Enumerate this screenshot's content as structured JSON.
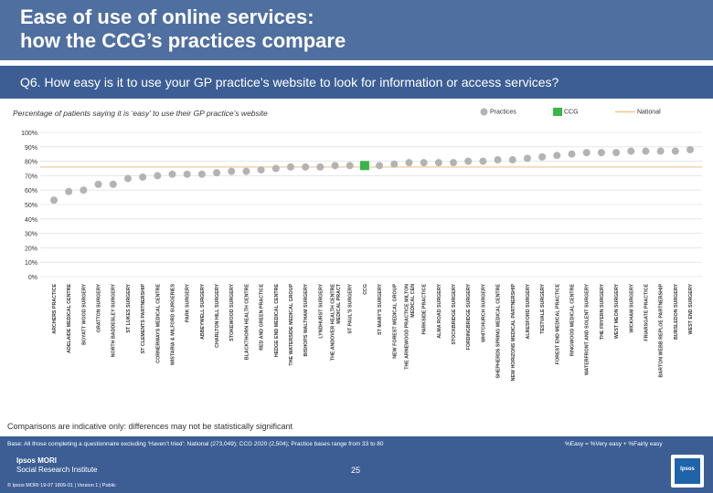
{
  "header": {
    "title": "Ease of use of online services:\nhow the CCG’s practices compare"
  },
  "question": "Q6. How easy is it to use your GP practice’s website to look for information or access services?",
  "footer": {
    "comparison_note": "Comparisons are indicative only: differences may not be statistically significant",
    "base_note": "Base: All those completing a questionnaire excluding ‘Haven’t tried’: National (273,049); CCG 2020 (2,504); Practice bases range from 33 to 80",
    "key_note": "%Easy = %Very easy + %Fairly easy",
    "logo_line1": "Ipsos MORI",
    "logo_line2": "Social Research Institute",
    "copyright": "© Ipsos MORI     19-07 1809-01 | Version 1 | Public",
    "page_number": "25",
    "badge": "Ipsos"
  },
  "chart_data": {
    "type": "scatter",
    "subtitle": "Percentage of patients saying it is ‘easy’ to use their GP practice’s website",
    "legend": [
      {
        "label": "Practices",
        "marker": "circle"
      },
      {
        "label": "CCG",
        "marker": "square"
      },
      {
        "label": "National",
        "marker": "line"
      }
    ],
    "legend_placement": "top-right",
    "y_ticks": [
      "0%",
      "10%",
      "20%",
      "30%",
      "40%",
      "50%",
      "60%",
      "70%",
      "80%",
      "90%",
      "100%"
    ],
    "ylim": [
      0,
      100
    ],
    "national": 76,
    "categories": [
      "ARCHERS PRACTICE",
      "ADELAIDE MEDICAL CENTRE",
      "BOYATT WOOD SURGERY",
      "GRATTON SURGERY",
      "NORTH BADDESLEY SURGERY",
      "ST LUKES SURGERY",
      "ST CLEMENTS PARTNERSHIP",
      "CORNERWAYS MEDICAL CENTRE",
      "WISTARIA & MILFORD SURGERIES",
      "PARK SURGERY",
      "ABBEYWELL SURGERY",
      "CHARLTON HILL SURGERY",
      "STOKEWOOD SURGERY",
      "BLACKTHORN HEALTH CENTRE",
      "RED AND GREEN PRACTICE",
      "HEDGE END MEDICAL CENTRE",
      "THE WATERSIDE MEDICAL GROUP",
      "BISHOPS WALTHAM SURGERY",
      "LYNDHURST SURGERY",
      "THE ANDOVER HEALTH CENTRE MEDICAL PRACT",
      "ST PAUL'S SURGERY",
      "CCG",
      "ST MARY'S SURGERY",
      "NEW FOREST MEDICAL GROUP",
      "THE ARNEWOOD PRACTICE MILTON MEDICAL CEN",
      "PARKSIDE PRACTICE",
      "ALMA ROAD SURGERY",
      "STOCKBRIDGE SURGERY",
      "FORDINGBRIDGE SURGERY",
      "WHITCHURCH SURGERY",
      "SHEPHERDS SPRING MEDICAL CENTRE",
      "NEW HORIZONS MEDICAL PARTNERSHIP",
      "ALRESFORD SURGERY",
      "TESTVALE SURGERY",
      "FOREST END MEDICAL PRACTICE",
      "RINGWOOD MEDICAL CENTRE",
      "WATERFRONT AND SOLENT SURGERY",
      "THE FRYERN SURGERY",
      "WEST MEON SURGERY",
      "WICKHAM SURGERY",
      "FRIARSGATE PRACTICE",
      "BARTON WEBB REPLOE PARTNERSHIP",
      "BURSLEDON SURGERY",
      "WEST END SURGERY"
    ],
    "values": [
      53,
      59,
      60,
      64,
      64,
      68,
      69,
      70,
      71,
      71,
      71,
      72,
      73,
      73,
      74,
      75,
      76,
      76,
      76,
      77,
      77,
      77,
      77,
      78,
      79,
      79,
      79,
      79,
      80,
      80,
      81,
      81,
      82,
      83,
      84,
      85,
      86,
      86,
      86,
      87,
      87,
      87,
      87,
      88
    ],
    "highlight": "CCG"
  },
  "colors": {
    "title_band": "#4f6fa0",
    "question_band": "#3d5e95",
    "practice_marker": "#b3b3b3",
    "ccg_marker": "#3ab54a",
    "national_line": "#f2c48d",
    "gridline": "#d9d9d9"
  }
}
